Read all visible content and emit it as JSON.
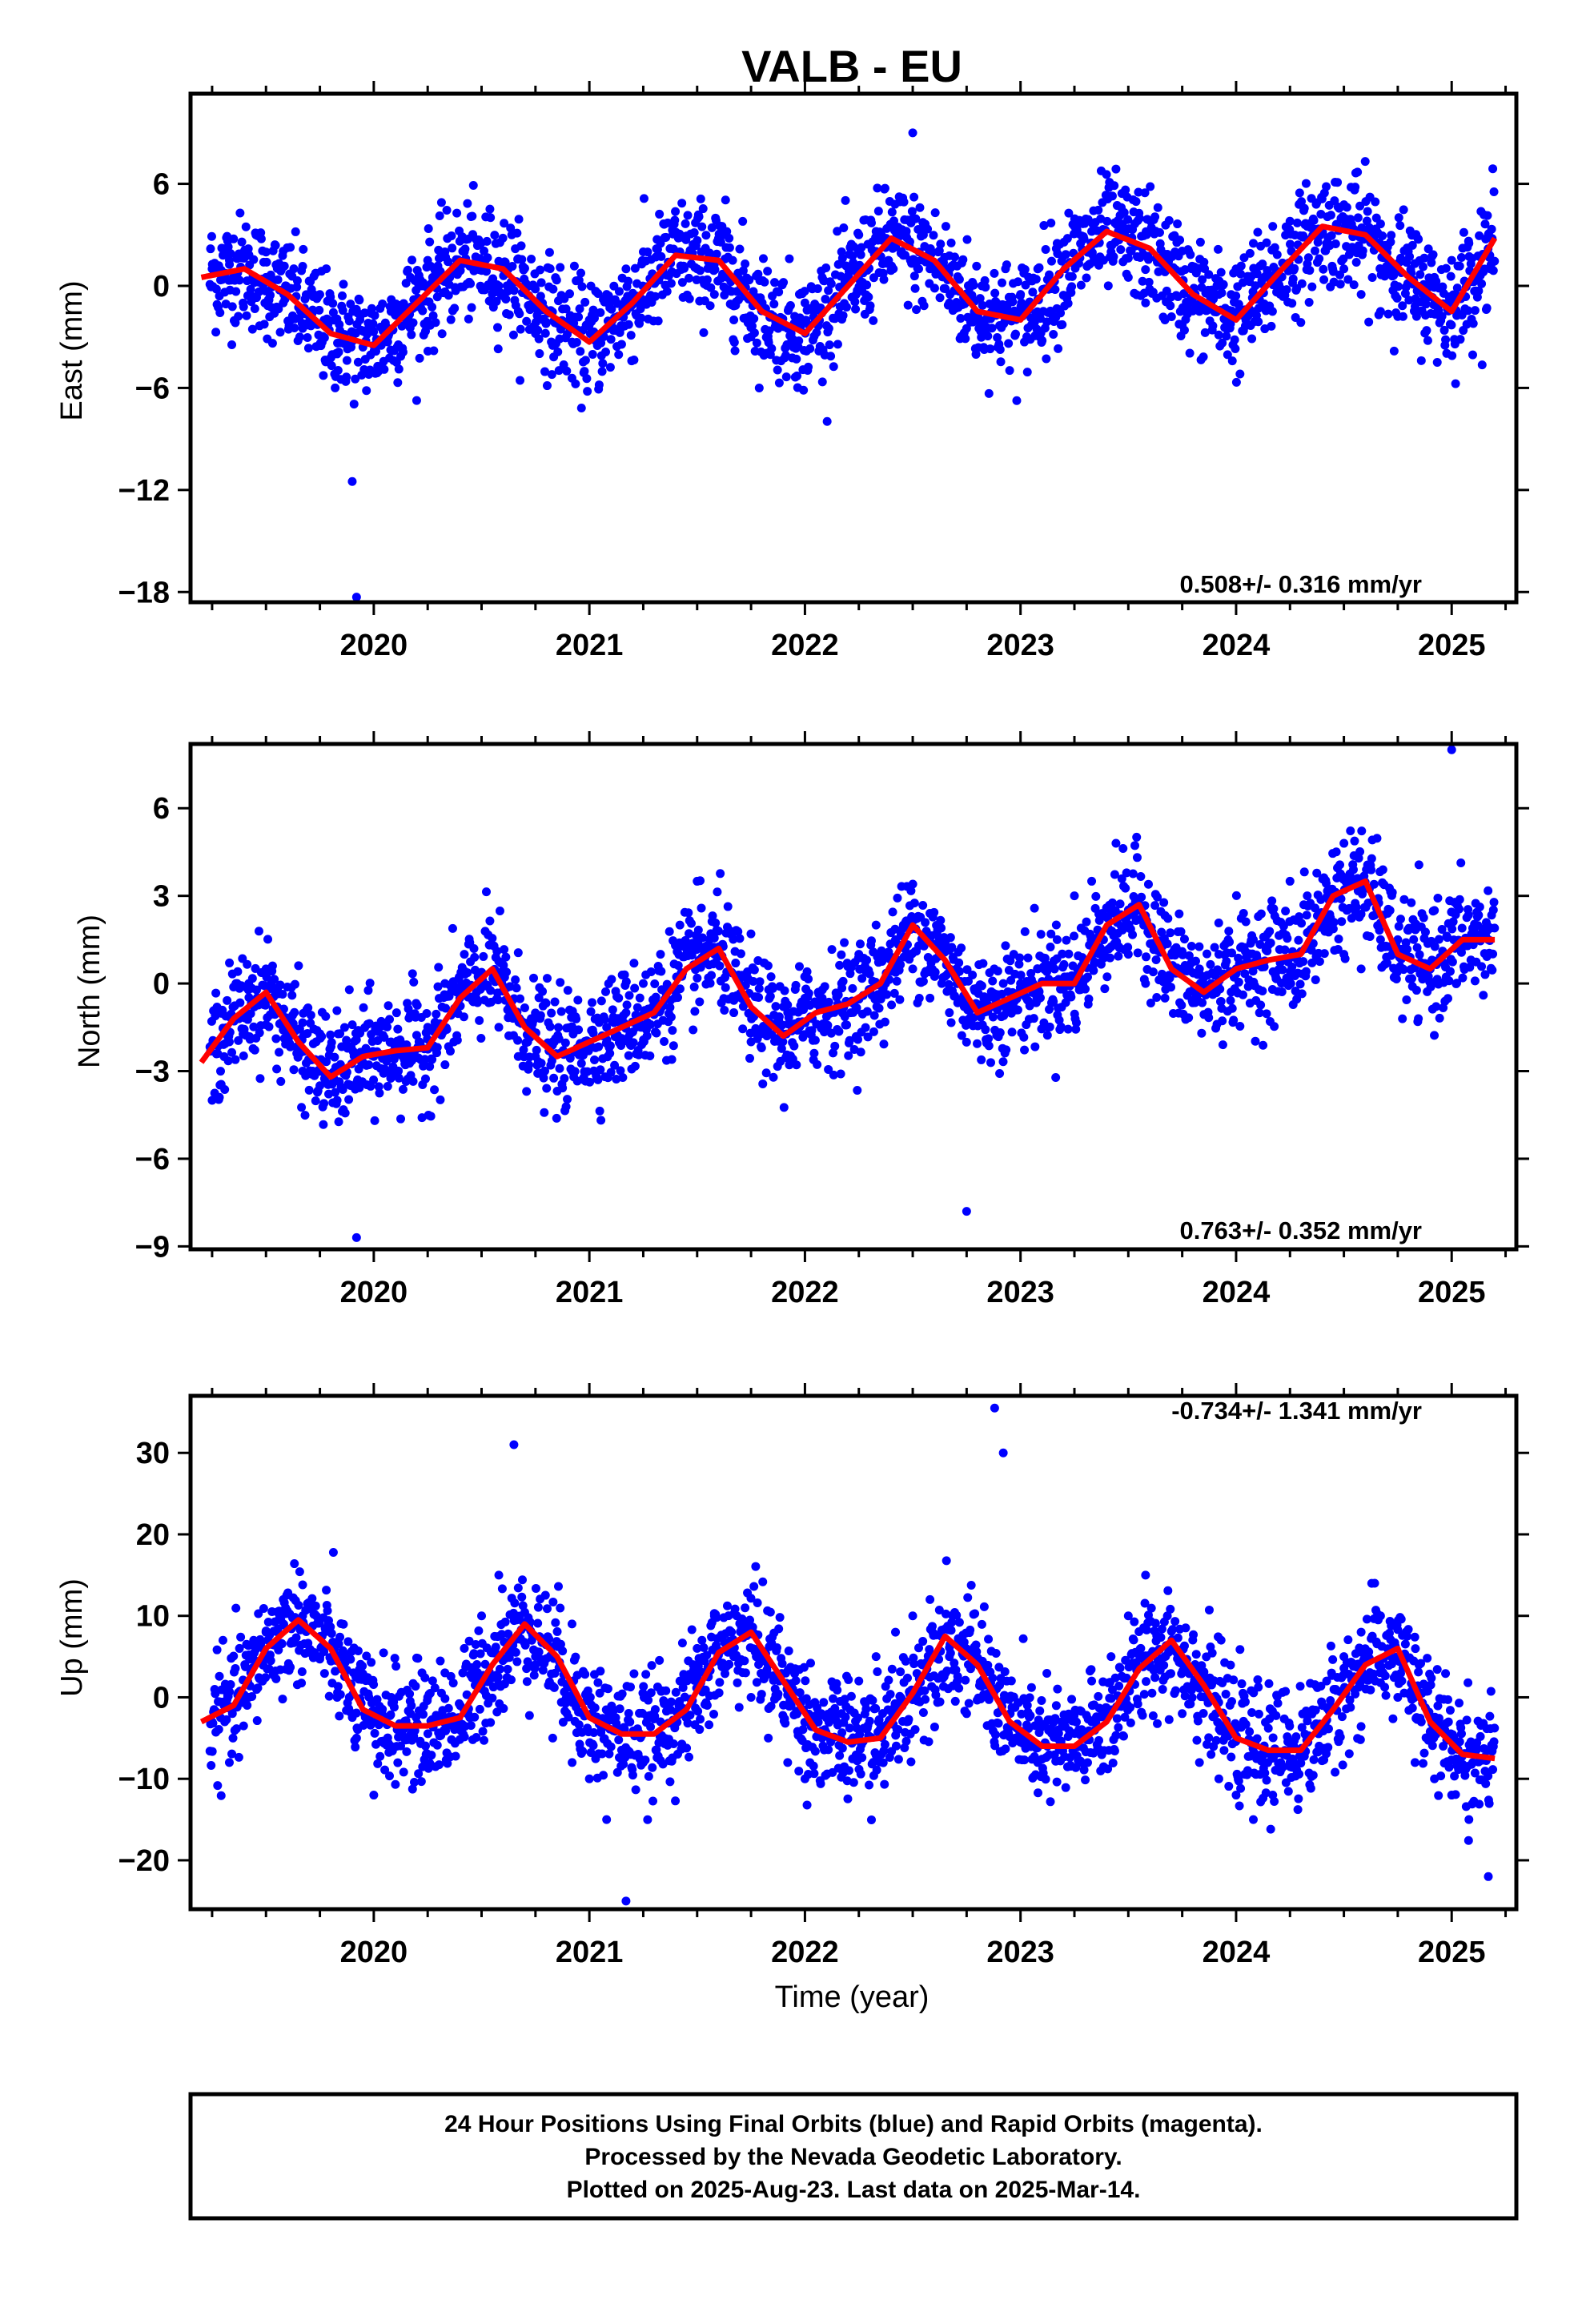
{
  "title": "VALB - EU",
  "xlabel": "Time (year)",
  "footer": {
    "line1": "24 Hour Positions Using Final Orbits (blue) and Rapid Orbits (magenta).",
    "line2": "Processed by the Nevada Geodetic Laboratory.",
    "line3": "Plotted on 2025-Aug-23. Last data on 2025-Mar-14."
  },
  "colors": {
    "final_orbits": "#0000ff",
    "fit_curve": "#ff0000",
    "axes": "#000000"
  },
  "chart_data": [
    {
      "type": "scatter",
      "ylabel": "East (mm)",
      "rate_text": "0.508+/- 0.316 mm/yr",
      "rate_position": "bottom-right",
      "xlim": [
        2019.15,
        2025.3
      ],
      "ylim": [
        -18.6,
        11.3
      ],
      "yticks": [
        6,
        0,
        -6,
        -12,
        -18
      ],
      "xticks": [
        2020,
        2021,
        2022,
        2023,
        2024,
        2025
      ],
      "grid": false,
      "series": [
        {
          "kind": "points",
          "x": [
            2019.25,
            2019.33,
            2019.42,
            2019.5,
            2019.58,
            2019.67,
            2019.75,
            2019.83,
            2019.9,
            2019.92,
            2020.0,
            2020.08,
            2020.17,
            2020.25,
            2020.33,
            2020.42,
            2020.5,
            2020.58,
            2020.67,
            2020.75,
            2020.83,
            2020.92,
            2021.0,
            2021.08,
            2021.17,
            2021.25,
            2021.33,
            2021.42,
            2021.5,
            2021.58,
            2021.67,
            2021.75,
            2021.83,
            2021.92,
            2022.0,
            2022.08,
            2022.17,
            2022.25,
            2022.33,
            2022.42,
            2022.5,
            2022.58,
            2022.67,
            2022.75,
            2022.83,
            2022.92,
            2023.0,
            2023.08,
            2023.17,
            2023.25,
            2023.33,
            2023.42,
            2023.5,
            2023.58,
            2023.67,
            2023.75,
            2023.83,
            2023.92,
            2024.0,
            2024.08,
            2024.17,
            2024.25,
            2024.33,
            2024.42,
            2024.5,
            2024.58,
            2024.67,
            2024.75,
            2024.83,
            2024.92,
            2025.0,
            2025.08,
            2025.17
          ],
          "y": [
            1.0,
            1.5,
            1.8,
            0.5,
            -1.0,
            -2.5,
            -3.5,
            -4.0,
            -11.5,
            -18.3,
            -3.5,
            -1.5,
            0.5,
            1.5,
            2.0,
            2.0,
            1.2,
            0.0,
            -1.5,
            -2.8,
            -3.5,
            -3.3,
            -2.0,
            -0.5,
            1.0,
            2.0,
            2.5,
            2.0,
            1.0,
            -0.5,
            -2.0,
            -3.0,
            -3.2,
            -2.5,
            -1.0,
            0.5,
            2.0,
            3.0,
            3.2,
            2.5,
            9.0,
            1.0,
            -1.0,
            -2.5,
            -2.3,
            -1.5,
            -0.5,
            1.0,
            2.5,
            3.5,
            3.2,
            2.0,
            0.5,
            -1.0,
            -2.0,
            -2.3,
            -1.5,
            -0.5,
            1.0,
            2.5,
            3.5,
            3.8,
            3.5,
            2.5,
            1.0,
            -0.5,
            -1.5,
            -1.8,
            -1.2,
            0.5,
            1.5,
            2.5,
            3.0
          ]
        },
        {
          "kind": "fit",
          "x": [
            2019.2,
            2019.4,
            2019.6,
            2019.8,
            2020.0,
            2020.2,
            2020.4,
            2020.6,
            2020.8,
            2021.0,
            2021.2,
            2021.4,
            2021.6,
            2021.8,
            2022.0,
            2022.2,
            2022.4,
            2022.6,
            2022.8,
            2023.0,
            2023.2,
            2023.4,
            2023.6,
            2023.8,
            2024.0,
            2024.2,
            2024.4,
            2024.6,
            2024.8,
            2025.0,
            2025.2
          ],
          "y": [
            0.5,
            1.0,
            -0.5,
            -2.8,
            -3.5,
            -1.0,
            1.5,
            1.0,
            -1.5,
            -3.3,
            -1.0,
            1.8,
            1.5,
            -1.5,
            -2.8,
            0.0,
            2.8,
            1.5,
            -1.5,
            -2.0,
            1.0,
            3.2,
            2.2,
            -0.5,
            -2.0,
            0.8,
            3.5,
            3.0,
            0.5,
            -1.5,
            2.8
          ]
        }
      ]
    },
    {
      "type": "scatter",
      "ylabel": "North (mm)",
      "rate_text": "0.763+/- 0.352 mm/yr",
      "rate_position": "bottom-right",
      "xlim": [
        2019.15,
        2025.3
      ],
      "ylim": [
        -9.1,
        8.2
      ],
      "yticks": [
        6,
        3,
        0,
        -3,
        -6,
        -9
      ],
      "xticks": [
        2020,
        2021,
        2022,
        2023,
        2024,
        2025
      ],
      "grid": false,
      "series": [
        {
          "kind": "points",
          "x": [
            2019.25,
            2019.33,
            2019.42,
            2019.5,
            2019.58,
            2019.67,
            2019.75,
            2019.83,
            2019.92,
            2020.0,
            2020.08,
            2020.17,
            2020.25,
            2020.33,
            2020.42,
            2020.5,
            2020.58,
            2020.67,
            2020.75,
            2020.83,
            2020.92,
            2021.0,
            2021.08,
            2021.17,
            2021.25,
            2021.33,
            2021.42,
            2021.5,
            2021.58,
            2021.67,
            2021.75,
            2021.83,
            2021.92,
            2022.0,
            2022.08,
            2022.17,
            2022.25,
            2022.33,
            2022.42,
            2022.5,
            2022.58,
            2022.67,
            2022.75,
            2022.83,
            2022.92,
            2023.0,
            2023.08,
            2023.17,
            2023.25,
            2023.33,
            2023.42,
            2023.5,
            2023.58,
            2023.67,
            2023.75,
            2023.83,
            2023.92,
            2024.0,
            2024.08,
            2024.17,
            2024.25,
            2024.33,
            2024.42,
            2024.5,
            2024.58,
            2024.67,
            2024.75,
            2024.83,
            2024.92,
            2025.0,
            2025.08,
            2025.17
          ],
          "y": [
            -4.0,
            -2.0,
            0.0,
            0.5,
            -1.5,
            -3.0,
            -3.5,
            -4.0,
            -8.7,
            -2.5,
            -2.0,
            -2.5,
            -1.5,
            0.0,
            1.0,
            0.0,
            -1.5,
            -2.5,
            -2.5,
            -2.0,
            -3.0,
            -2.0,
            -1.5,
            -1.0,
            0.0,
            1.0,
            2.0,
            3.5,
            1.0,
            -1.0,
            -2.0,
            -1.5,
            -1.0,
            -0.5,
            -0.5,
            0.0,
            1.0,
            2.0,
            1.5,
            0.5,
            -0.5,
            -1.0,
            -7.8,
            -0.5,
            0.0,
            0.0,
            0.5,
            1.5,
            3.0,
            3.5,
            2.5,
            1.0,
            0.0,
            -0.5,
            0.5,
            0.5,
            1.0,
            0.5,
            1.5,
            2.5,
            3.5,
            3.0,
            2.0,
            1.0,
            0.5,
            1.5,
            1.5,
            2.0,
            2.5,
            8.0,
            1.5,
            1.5
          ]
        },
        {
          "kind": "fit",
          "x": [
            2019.2,
            2019.35,
            2019.5,
            2019.65,
            2019.8,
            2019.95,
            2020.1,
            2020.25,
            2020.4,
            2020.55,
            2020.7,
            2020.85,
            2021.0,
            2021.15,
            2021.3,
            2021.45,
            2021.6,
            2021.75,
            2021.9,
            2022.05,
            2022.2,
            2022.35,
            2022.5,
            2022.65,
            2022.8,
            2022.95,
            2023.1,
            2023.25,
            2023.4,
            2023.55,
            2023.7,
            2023.85,
            2024.0,
            2024.15,
            2024.3,
            2024.45,
            2024.6,
            2024.75,
            2024.9,
            2025.05,
            2025.2
          ],
          "y": [
            -2.7,
            -1.2,
            -0.3,
            -2.0,
            -3.2,
            -2.5,
            -2.3,
            -2.2,
            -0.5,
            0.5,
            -1.5,
            -2.5,
            -2.0,
            -1.5,
            -1.0,
            0.5,
            1.2,
            -0.8,
            -1.8,
            -1.0,
            -0.7,
            0.0,
            2.0,
            0.8,
            -1.0,
            -0.5,
            0.0,
            0.0,
            2.0,
            2.7,
            0.5,
            -0.3,
            0.5,
            0.8,
            1.0,
            3.0,
            3.5,
            1.0,
            0.5,
            1.5,
            1.5
          ]
        }
      ]
    },
    {
      "type": "scatter",
      "ylabel": "Up (mm)",
      "rate_text": "-0.734+/- 1.341 mm/yr",
      "rate_position": "top-right",
      "xlim": [
        2019.15,
        2025.3
      ],
      "ylim": [
        -26,
        37
      ],
      "yticks": [
        30,
        20,
        10,
        0,
        -10,
        -20
      ],
      "xticks": [
        2020,
        2021,
        2022,
        2023,
        2024,
        2025
      ],
      "grid": false,
      "series": [
        {
          "kind": "points",
          "x": [
            2019.25,
            2019.33,
            2019.42,
            2019.5,
            2019.58,
            2019.67,
            2019.75,
            2019.83,
            2019.92,
            2020.0,
            2020.08,
            2020.17,
            2020.25,
            2020.33,
            2020.42,
            2020.5,
            2020.58,
            2020.65,
            2020.75,
            2020.83,
            2020.92,
            2021.0,
            2021.08,
            2021.17,
            2021.25,
            2021.33,
            2021.42,
            2021.5,
            2021.58,
            2021.67,
            2021.75,
            2021.83,
            2021.92,
            2022.0,
            2022.08,
            2022.17,
            2022.25,
            2022.33,
            2022.42,
            2022.5,
            2022.58,
            2022.67,
            2022.75,
            2022.88,
            2022.92,
            2023.0,
            2023.08,
            2023.17,
            2023.25,
            2023.33,
            2023.42,
            2023.5,
            2023.58,
            2023.67,
            2023.75,
            2023.83,
            2023.92,
            2024.0,
            2024.08,
            2024.17,
            2024.25,
            2024.33,
            2024.42,
            2024.5,
            2024.58,
            2024.67,
            2024.75,
            2024.83,
            2024.92,
            2025.0,
            2025.08,
            2025.17
          ],
          "y": [
            -3.0,
            -8.0,
            0.0,
            8.0,
            12.0,
            10.0,
            5.0,
            0.0,
            -5.0,
            -12.0,
            -6.0,
            -2.0,
            0.0,
            3.0,
            6.0,
            10.0,
            15.0,
            31.0,
            5.0,
            -5.0,
            -8.0,
            -10.0,
            -15.0,
            -25.0,
            -8.0,
            -3.0,
            2.0,
            6.0,
            10.0,
            5.0,
            0.0,
            -5.0,
            -8.0,
            -10.0,
            -5.0,
            -2.0,
            2.0,
            5.0,
            8.0,
            10.0,
            12.0,
            5.0,
            -2.0,
            35.5,
            30.0,
            -5.0,
            -8.0,
            -5.0,
            -2.0,
            2.0,
            5.0,
            10.0,
            15.0,
            5.0,
            -2.0,
            -8.0,
            -10.0,
            -12.0,
            -15.0,
            -12.0,
            -8.0,
            -2.0,
            2.0,
            5.0,
            8.0,
            10.0,
            0.0,
            -8.0,
            -10.0,
            -12.0,
            -15.0,
            -22.0
          ]
        },
        {
          "kind": "fit",
          "x": [
            2019.2,
            2019.35,
            2019.5,
            2019.65,
            2019.8,
            2019.95,
            2020.1,
            2020.25,
            2020.4,
            2020.55,
            2020.7,
            2020.85,
            2021.0,
            2021.15,
            2021.3,
            2021.45,
            2021.6,
            2021.75,
            2021.9,
            2022.05,
            2022.2,
            2022.35,
            2022.5,
            2022.65,
            2022.8,
            2022.95,
            2023.1,
            2023.25,
            2023.4,
            2023.55,
            2023.7,
            2023.85,
            2024.0,
            2024.15,
            2024.3,
            2024.45,
            2024.6,
            2024.75,
            2024.9,
            2025.05,
            2025.2
          ],
          "y": [
            -3.0,
            -1.0,
            6.0,
            9.5,
            6.0,
            -1.5,
            -3.5,
            -3.5,
            -2.5,
            4.0,
            9.0,
            5.0,
            -2.5,
            -4.5,
            -4.5,
            -1.5,
            5.5,
            8.0,
            2.0,
            -4.0,
            -5.5,
            -5.0,
            0.5,
            7.5,
            4.0,
            -3.0,
            -6.0,
            -6.0,
            -3.0,
            3.5,
            7.0,
            1.5,
            -5.0,
            -6.5,
            -6.5,
            -1.5,
            4.0,
            6.0,
            -3.0,
            -7.0,
            -7.5
          ]
        }
      ]
    }
  ]
}
